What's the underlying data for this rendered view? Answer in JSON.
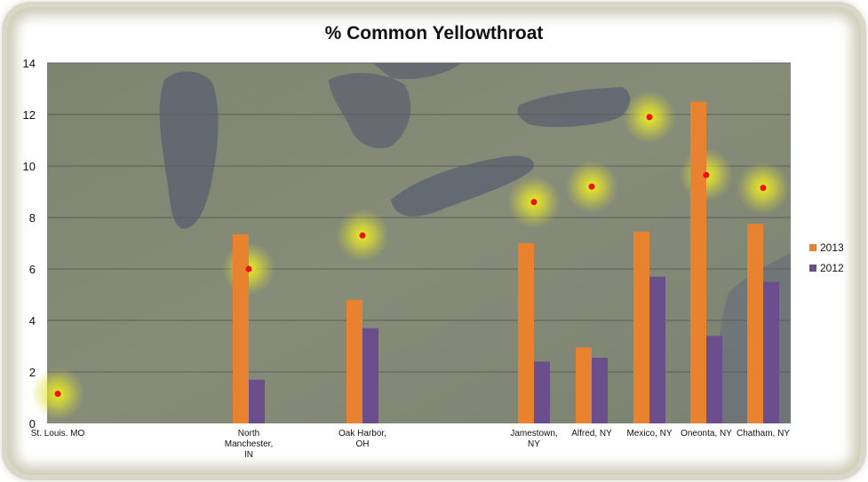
{
  "chart_data": {
    "type": "bar",
    "title": "% Common Yellowthroat",
    "categories": [
      [
        "St. Louis. MO"
      ],
      [
        "North",
        "Manchester,",
        "IN"
      ],
      [
        "Oak Harbor,",
        "OH"
      ],
      [
        "Jamestown,",
        "NY"
      ],
      [
        "Alfred, NY"
      ],
      [
        "Mexico, NY"
      ],
      [
        "Oneonta, NY"
      ],
      [
        "Chatham, NY"
      ]
    ],
    "series": [
      {
        "name": "2013",
        "color": "#e8822e",
        "values": [
          0,
          7.35,
          4.8,
          7.0,
          2.95,
          7.45,
          12.5,
          7.75
        ]
      },
      {
        "name": "2012",
        "color": "#6b4f8c",
        "values": [
          0,
          1.7,
          3.7,
          2.4,
          2.55,
          5.7,
          3.4,
          5.5
        ]
      }
    ],
    "markers": [
      1.15,
      6.0,
      7.3,
      8.6,
      9.2,
      11.9,
      9.65,
      9.15
    ],
    "marker_color": "#e8141a",
    "ylim": [
      0,
      14
    ],
    "yticks": [
      0,
      2,
      4,
      6,
      8,
      10,
      12,
      14
    ],
    "grid": true,
    "legend": "right",
    "background": "satellite map"
  }
}
